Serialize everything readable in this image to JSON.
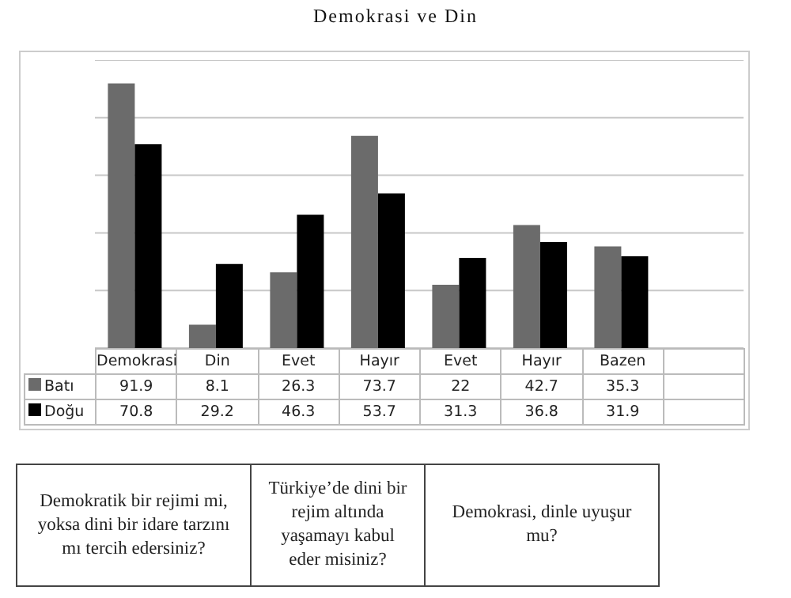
{
  "chart_data": {
    "type": "bar",
    "title": "Demokrasi ve Din",
    "categories": [
      "Demokrasi",
      "Din",
      "Evet",
      "Hayır",
      "Evet",
      "Hayır",
      "Bazen",
      null
    ],
    "series": [
      {
        "name": "Batı",
        "color": "#6b6b6b",
        "values": [
          91.9,
          8.1,
          26.3,
          73.7,
          22,
          42.7,
          35.3,
          null
        ]
      },
      {
        "name": "Doğu",
        "color": "#000000",
        "values": [
          70.8,
          29.2,
          46.3,
          53.7,
          31.3,
          36.8,
          31.9,
          null
        ]
      }
    ],
    "ylim": [
      0,
      100
    ],
    "yticks": [
      {
        "value": 0,
        "label": null
      },
      {
        "value": 20,
        "label": null
      },
      {
        "value": 40,
        "label": null
      },
      {
        "value": 60,
        "label": null
      },
      {
        "value": 80,
        "label": null
      },
      {
        "value": 100,
        "label": null
      }
    ],
    "grid": "y",
    "legend": "bottom",
    "data_labels": true,
    "tick_labels": "x",
    "annotations": [
      "Demokratik bir rejimi mi, yoksa dini bir idare tarzını mı tercih edersiniz?",
      "Türkiye’de dini bir rejim altında yaşamayı kabul eder misiniz?",
      "Demokrasi, dinle uyuşur mu?"
    ]
  }
}
